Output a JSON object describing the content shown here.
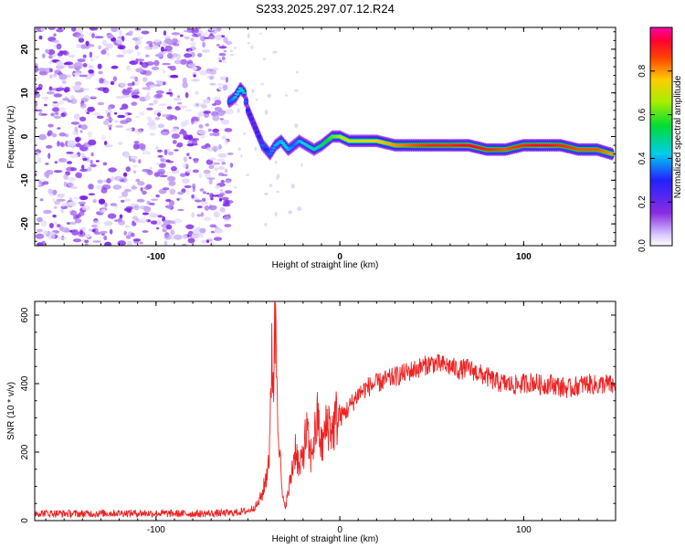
{
  "title": "S233.2025.297.07.12.R24",
  "chart_data": [
    {
      "type": "heatmap",
      "title": "S233.2025.297.07.12.R24",
      "xlabel": "Height of straight line (km)",
      "ylabel": "Frequency (Hz)",
      "xlim": [
        -166,
        150
      ],
      "ylim": [
        -25,
        25
      ],
      "xticks": [
        -100,
        0,
        100
      ],
      "xtick_labels": [
        "-100",
        "0",
        "100"
      ],
      "yticks": [
        -20,
        -10,
        0,
        10,
        20
      ],
      "ytick_labels": [
        "-20",
        "-10",
        "0",
        "10",
        "20"
      ],
      "noise_region_x": [
        -166,
        -60
      ],
      "ridge": {
        "x": [
          -60,
          -57,
          -54,
          -52,
          -50,
          -47,
          -44,
          -42,
          -40,
          -38,
          -35,
          -32,
          -30,
          -28,
          -25,
          -22,
          -18,
          -14,
          -10,
          -7,
          -4,
          0,
          5,
          10,
          20,
          30,
          40,
          50,
          60,
          70,
          80,
          90,
          100,
          110,
          120,
          130,
          140,
          148
        ],
        "y": [
          8,
          9,
          11,
          10,
          6,
          3,
          0,
          -2,
          -3,
          -4,
          -2,
          -1,
          -2,
          -3,
          -2,
          -1,
          -2,
          -3,
          -2,
          -1,
          0,
          0,
          -1,
          -1,
          -1,
          -2,
          -2,
          -2,
          -2,
          -2,
          -3,
          -3,
          -2,
          -2,
          -2,
          -3,
          -3,
          -4
        ],
        "amplitude": [
          0.35,
          0.4,
          0.45,
          0.4,
          0.3,
          0.25,
          0.3,
          0.35,
          0.3,
          0.35,
          0.4,
          0.4,
          0.45,
          0.4,
          0.35,
          0.4,
          0.45,
          0.45,
          0.5,
          0.55,
          0.6,
          0.65,
          0.7,
          0.7,
          0.75,
          0.8,
          0.85,
          0.9,
          0.9,
          0.95,
          0.9,
          0.85,
          0.9,
          0.95,
          0.9,
          0.85,
          0.85,
          0.8
        ]
      },
      "colorbar": {
        "label": "Normalized spectral amplitude",
        "range": [
          0,
          1
        ],
        "ticks": [
          0.0,
          0.2,
          0.4,
          0.6,
          0.8
        ],
        "tick_labels": [
          "0.0",
          "0.2",
          "0.4",
          "0.6",
          "0.8"
        ]
      }
    },
    {
      "type": "line",
      "xlabel": "Height of straight line (km)",
      "ylabel": "SNR (10 * v/v)",
      "xlim": [
        -166,
        150
      ],
      "ylim": [
        0,
        640
      ],
      "xticks": [
        -100,
        0,
        100
      ],
      "xtick_labels": [
        "-100",
        "0",
        "100"
      ],
      "yticks": [
        0,
        200,
        400,
        600
      ],
      "ytick_labels": [
        "0",
        "200",
        "400",
        "600"
      ],
      "series": [
        {
          "name": "SNR",
          "color": "#ee2222",
          "x": [
            -166,
            -140,
            -120,
            -100,
            -80,
            -60,
            -50,
            -45,
            -42,
            -40,
            -38,
            -37,
            -36,
            -35,
            -34,
            -33,
            -32,
            -31,
            -30,
            -28,
            -26,
            -24,
            -22,
            -20,
            -18,
            -16,
            -14,
            -12,
            -10,
            -8,
            -6,
            -4,
            -2,
            0,
            5,
            10,
            15,
            20,
            25,
            30,
            35,
            40,
            45,
            50,
            55,
            60,
            65,
            70,
            75,
            80,
            85,
            90,
            95,
            100,
            105,
            110,
            115,
            120,
            125,
            130,
            135,
            140,
            145,
            150
          ],
          "y": [
            22,
            20,
            22,
            21,
            20,
            22,
            28,
            45,
            80,
            130,
            220,
            520,
            420,
            610,
            380,
            250,
            120,
            60,
            40,
            80,
            150,
            220,
            140,
            200,
            260,
            180,
            240,
            300,
            210,
            260,
            290,
            260,
            300,
            300,
            330,
            370,
            390,
            400,
            410,
            420,
            430,
            440,
            450,
            460,
            455,
            450,
            440,
            445,
            430,
            420,
            405,
            400,
            395,
            400,
            405,
            395,
            400,
            390,
            385,
            395,
            400,
            395,
            400,
            390
          ]
        }
      ]
    }
  ]
}
